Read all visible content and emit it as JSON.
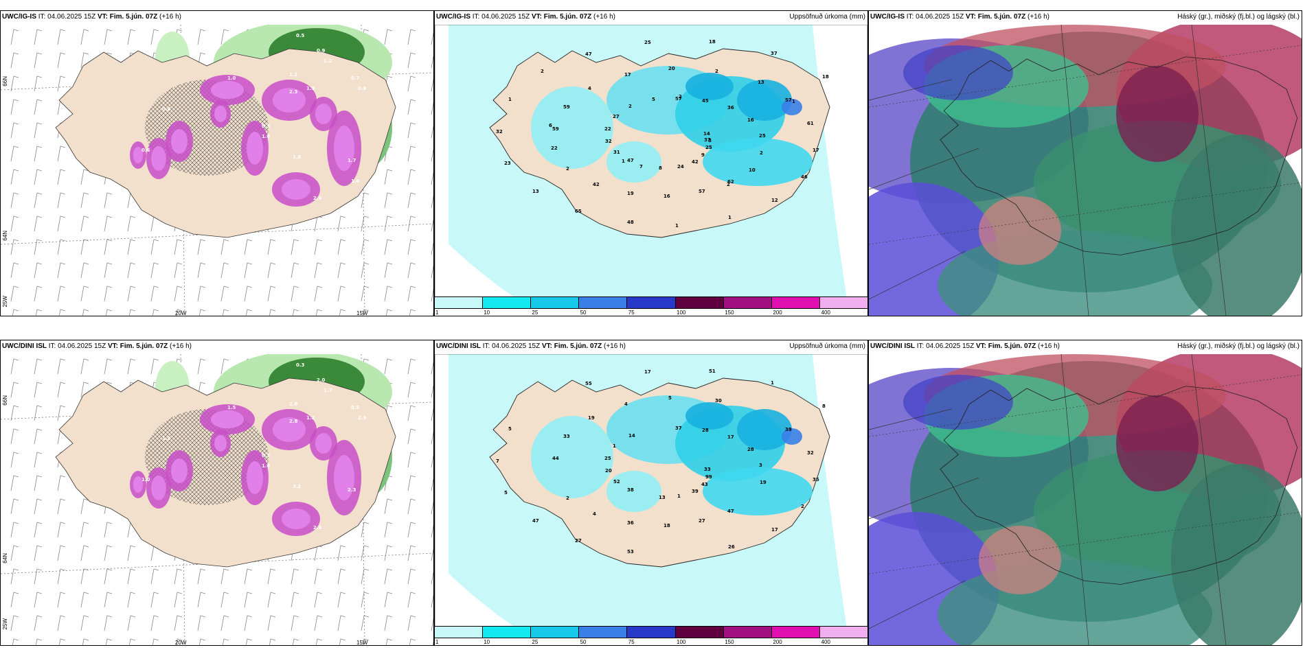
{
  "rows": [
    {
      "left": {
        "model": "UWC/IG-IS",
        "it": "IT: 04.06.2025 15Z",
        "vt": "VT: Fim. 5.jún. 07Z",
        "lead": "(+16 h)"
      },
      "mid": {
        "model": "UWC/IG-IS",
        "it": "IT: 04.06.2025 15Z",
        "vt": "VT: Fim. 5.jún. 07Z",
        "lead": "(+16 h)",
        "right": "Uppsöfnuð úrkoma (mm)"
      },
      "right": {
        "model": "UWC/IG-IS",
        "it": "IT: 04.06.2025 15Z",
        "vt": "VT: Fim. 5.jún. 07Z",
        "lead": "(+16 h)",
        "right": "Háský (gr.), miðský (fj.bl.) og lágský (bl.)"
      }
    },
    {
      "left": {
        "model": "UWC/DINI ISL",
        "it": "IT: 04.06.2025 15Z",
        "vt": "VT: Fim. 5.jún. 07Z",
        "lead": "(+16 h)"
      },
      "mid": {
        "model": "UWC/DINI ISL",
        "it": "IT: 04.06.2025 15Z",
        "vt": "VT: Fim. 5.jún. 07Z",
        "lead": "(+16 h)",
        "right": "Uppsöfnuð úrkoma (mm)"
      },
      "right": {
        "model": "UWC/DINI ISL",
        "it": "IT: 04.06.2025 15Z",
        "vt": "VT: Fim. 5.jún. 07Z",
        "lead": "(+16 h)",
        "right": "Háský (gr.), miðský (fj.bl.) og lágský (bl.)"
      }
    }
  ],
  "axes": {
    "lat66": "66N",
    "lat64": "64N",
    "lon20": "20W",
    "lon15": "15W",
    "lon25": "25W"
  },
  "colorbar": {
    "ticks": [
      "1",
      "10",
      "25",
      "50",
      "75",
      "100",
      "150",
      "200",
      "400"
    ],
    "colors": [
      "#c8f8f8",
      "#14e8f0",
      "#18c8e8",
      "#3880e8",
      "#2838c8",
      "#600040",
      "#a01080",
      "#e010b0",
      "#f0b0f0"
    ]
  },
  "precip_labels_top": [
    "37",
    "47",
    "57",
    "62",
    "59",
    "57",
    "48",
    "47",
    "25",
    "31",
    "45",
    "57",
    "59",
    "61",
    "65",
    "25",
    "9",
    "32",
    "36",
    "16",
    "4",
    "17",
    "13",
    "18",
    "42",
    "22",
    "16",
    "19",
    "17",
    "46",
    "23",
    "37",
    "24",
    "27",
    "25",
    "42",
    "20",
    "12",
    "32",
    "18",
    "8",
    "2",
    "2",
    "2",
    "2",
    "1",
    "1",
    "14",
    "7",
    "5",
    "10",
    "22",
    "13",
    "1",
    "2",
    "8",
    "1",
    "2",
    "2",
    "6",
    "1"
  ],
  "precip_labels_bottom": [
    "33",
    "38",
    "37",
    "47",
    "44",
    "39",
    "53",
    "55",
    "99",
    "52",
    "28",
    "27",
    "33",
    "32",
    "27",
    "17",
    "43",
    "20",
    "17",
    "18",
    "19",
    "35",
    "47",
    "51",
    "39",
    "25",
    "28",
    "36",
    "4",
    "2",
    "5",
    "1",
    "1",
    "1",
    "3",
    "4",
    "5",
    "17",
    "7",
    "8",
    "13",
    "14",
    "19",
    "2",
    "30",
    "26",
    "5"
  ],
  "snow_labels_top": [
    "0.5",
    "1.2",
    "0.9",
    "0.8",
    "0.7",
    "0.6",
    "1.1",
    "2.3",
    "1.6",
    "1.8",
    "2.4",
    "1.0",
    "0.3",
    "0.6",
    "1.9",
    "1.7",
    "1.4"
  ],
  "snow_labels_bottom": [
    "0.3",
    "1.7",
    "2.0",
    "2.9",
    "0.5",
    "1.8",
    "2.6",
    "2.8",
    "1.6",
    "3.2",
    "2.4",
    "1.5",
    "0.7",
    "1.0",
    "1.2",
    "2.3"
  ]
}
